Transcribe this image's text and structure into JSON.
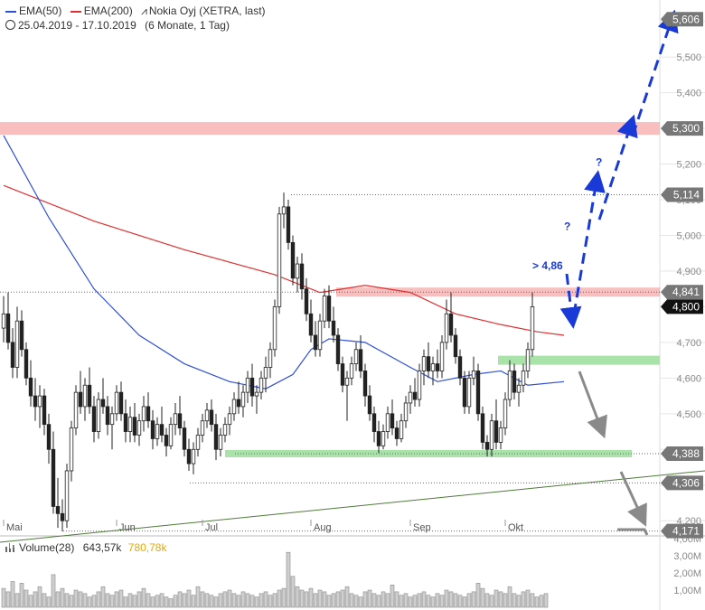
{
  "legend": {
    "ema50": "EMA(50)",
    "ema200": "EMA(200)",
    "instrument": "Nokia Oyj (XETRA, last)",
    "range": "25.04.2019 - 17.10.2019",
    "period": "(6 Monate, 1 Tag)",
    "volume_title": "Volume(28)",
    "volume_value1": "643,57k",
    "volume_value2": "780,78k"
  },
  "colors": {
    "ema50": "#2e4fd8",
    "ema200": "#e03030",
    "arrow_blue": "#1a3ad8",
    "resistance": "#f7a8a8",
    "support": "#a9e3a9",
    "trend": "#4f7a3a",
    "candle": "#222222",
    "projection_grey": "#8a8a8a"
  },
  "chart_data": {
    "type": "candlestick",
    "ylim": [
      4.16,
      5.66
    ],
    "y_ticks": [
      "4,200",
      "4,300",
      "4,400",
      "4,500",
      "4,600",
      "4,700",
      "4,800",
      "4,900",
      "5,000",
      "5,100",
      "5,200",
      "5,300",
      "5,400",
      "5,500",
      "5,600"
    ],
    "x_labels": [
      "Mai",
      "Jun",
      "Jul",
      "Aug",
      "Sep",
      "Okt"
    ],
    "price_tags": [
      {
        "label": "5,606",
        "value": 5.606,
        "style": "grey"
      },
      {
        "label": "5,300",
        "value": 5.3,
        "style": "grey"
      },
      {
        "label": "5,114",
        "value": 5.114,
        "style": "grey"
      },
      {
        "label": "4,841",
        "value": 4.841,
        "style": "grey"
      },
      {
        "label": "4,800",
        "value": 4.8,
        "style": "black"
      },
      {
        "label": "4,388",
        "value": 4.388,
        "style": "grey"
      },
      {
        "label": "4,306",
        "value": 4.306,
        "style": "grey"
      },
      {
        "label": "4,171",
        "value": 4.171,
        "style": "grey"
      }
    ],
    "annotations": [
      {
        "text": "> 4,86",
        "day": 118,
        "value": 4.905
      },
      {
        "text": "?",
        "day": 125,
        "value": 5.015
      },
      {
        "text": "?",
        "day": 132,
        "value": 5.195
      }
    ],
    "ema200": [
      [
        0,
        5.14
      ],
      [
        20,
        5.04
      ],
      [
        40,
        4.96
      ],
      [
        60,
        4.89
      ],
      [
        70,
        4.84
      ],
      [
        80,
        4.86
      ],
      [
        90,
        4.84
      ],
      [
        100,
        4.78
      ],
      [
        110,
        4.75
      ],
      [
        118,
        4.73
      ],
      [
        124,
        4.72
      ]
    ],
    "ema50": [
      [
        0,
        5.28
      ],
      [
        10,
        5.05
      ],
      [
        20,
        4.85
      ],
      [
        30,
        4.72
      ],
      [
        40,
        4.64
      ],
      [
        50,
        4.59
      ],
      [
        58,
        4.57
      ],
      [
        64,
        4.61
      ],
      [
        68,
        4.68
      ],
      [
        72,
        4.71
      ],
      [
        80,
        4.7
      ],
      [
        90,
        4.63
      ],
      [
        96,
        4.59
      ],
      [
        104,
        4.61
      ],
      [
        110,
        4.62
      ],
      [
        116,
        4.58
      ],
      [
        124,
        4.59
      ]
    ],
    "volume_axis": [
      "4,00M",
      "3,00M",
      "2,00M",
      "1,00M"
    ],
    "volume_ylim": [
      0,
      4.0
    ],
    "volume": [
      1.1,
      0.9,
      1.5,
      0.8,
      1.4,
      1.0,
      0.7,
      0.9,
      1.2,
      0.8,
      0.6,
      1.9,
      0.9,
      1.1,
      0.8,
      0.7,
      1.0,
      0.9,
      0.8,
      0.6,
      0.7,
      0.9,
      1.2,
      0.8,
      0.7,
      0.9,
      1.0,
      0.6,
      0.8,
      0.7,
      0.9,
      1.1,
      0.8,
      0.6,
      0.7,
      0.8,
      0.6,
      0.5,
      0.7,
      0.9,
      0.8,
      1.0,
      0.7,
      1.2,
      0.9,
      0.8,
      0.7,
      0.6,
      0.8,
      0.9,
      1.0,
      0.8,
      0.7,
      0.9,
      0.8,
      0.7,
      0.6,
      0.8,
      0.9,
      0.7,
      0.8,
      1.0,
      1.1,
      3.2,
      1.8,
      1.2,
      1.0,
      0.9,
      1.1,
      0.8,
      1.0,
      0.9,
      0.7,
      0.8,
      0.9,
      1.0,
      1.2,
      0.8,
      0.7,
      0.6,
      0.9,
      1.0,
      0.8,
      0.7,
      0.9,
      0.8,
      1.3,
      0.9,
      0.7,
      0.8,
      0.6,
      0.7,
      0.8,
      0.9,
      0.7,
      0.6,
      0.8,
      0.7,
      1.0,
      0.9,
      0.8,
      0.7,
      0.6,
      0.8,
      0.9,
      1.4,
      1.1,
      0.8,
      0.7,
      1.0,
      0.9,
      0.8,
      1.2,
      0.8,
      0.7,
      0.9,
      1.0,
      0.8,
      0.6,
      0.7,
      0.8
    ],
    "candles": [
      [
        4.74,
        4.83,
        4.7,
        4.78
      ],
      [
        4.78,
        4.84,
        4.68,
        4.7
      ],
      [
        4.7,
        4.74,
        4.6,
        4.63
      ],
      [
        4.63,
        4.8,
        4.6,
        4.76
      ],
      [
        4.76,
        4.79,
        4.66,
        4.68
      ],
      [
        4.68,
        4.7,
        4.58,
        4.6
      ],
      [
        4.6,
        4.65,
        4.52,
        4.55
      ],
      [
        4.55,
        4.6,
        4.48,
        4.52
      ],
      [
        4.52,
        4.58,
        4.46,
        4.55
      ],
      [
        4.55,
        4.57,
        4.44,
        4.47
      ],
      [
        4.47,
        4.5,
        4.36,
        4.4
      ],
      [
        4.4,
        4.45,
        4.22,
        4.24
      ],
      [
        4.24,
        4.32,
        4.18,
        4.22
      ],
      [
        4.22,
        4.26,
        4.17,
        4.2
      ],
      [
        4.2,
        4.36,
        4.18,
        4.34
      ],
      [
        4.34,
        4.48,
        4.31,
        4.46
      ],
      [
        4.46,
        4.58,
        4.44,
        4.56
      ],
      [
        4.56,
        4.62,
        4.5,
        4.52
      ],
      [
        4.52,
        4.6,
        4.48,
        4.58
      ],
      [
        4.58,
        4.63,
        4.5,
        4.52
      ],
      [
        4.52,
        4.55,
        4.42,
        4.45
      ],
      [
        4.45,
        4.56,
        4.43,
        4.54
      ],
      [
        4.54,
        4.6,
        4.5,
        4.52
      ],
      [
        4.52,
        4.55,
        4.44,
        4.47
      ],
      [
        4.47,
        4.52,
        4.4,
        4.5
      ],
      [
        4.5,
        4.58,
        4.48,
        4.56
      ],
      [
        4.56,
        4.59,
        4.48,
        4.5
      ],
      [
        4.5,
        4.54,
        4.42,
        4.45
      ],
      [
        4.45,
        4.52,
        4.42,
        4.49
      ],
      [
        4.49,
        4.53,
        4.42,
        4.44
      ],
      [
        4.44,
        4.5,
        4.41,
        4.48
      ],
      [
        4.48,
        4.55,
        4.45,
        4.52
      ],
      [
        4.52,
        4.56,
        4.46,
        4.48
      ],
      [
        4.48,
        4.51,
        4.4,
        4.43
      ],
      [
        4.43,
        4.49,
        4.41,
        4.47
      ],
      [
        4.47,
        4.52,
        4.42,
        4.44
      ],
      [
        4.44,
        4.46,
        4.38,
        4.41
      ],
      [
        4.41,
        4.49,
        4.4,
        4.47
      ],
      [
        4.47,
        4.53,
        4.44,
        4.5
      ],
      [
        4.5,
        4.55,
        4.44,
        4.46
      ],
      [
        4.46,
        4.48,
        4.38,
        4.4
      ],
      [
        4.4,
        4.43,
        4.34,
        4.36
      ],
      [
        4.36,
        4.42,
        4.33,
        4.4
      ],
      [
        4.4,
        4.46,
        4.38,
        4.44
      ],
      [
        4.44,
        4.5,
        4.42,
        4.48
      ],
      [
        4.48,
        4.53,
        4.46,
        4.51
      ],
      [
        4.51,
        4.54,
        4.45,
        4.47
      ],
      [
        4.47,
        4.5,
        4.37,
        4.4
      ],
      [
        4.4,
        4.46,
        4.38,
        4.44
      ],
      [
        4.44,
        4.49,
        4.42,
        4.47
      ],
      [
        4.47,
        4.52,
        4.44,
        4.5
      ],
      [
        4.5,
        4.56,
        4.48,
        4.54
      ],
      [
        4.54,
        4.59,
        4.5,
        4.52
      ],
      [
        4.52,
        4.58,
        4.49,
        4.56
      ],
      [
        4.56,
        4.62,
        4.53,
        4.6
      ],
      [
        4.6,
        4.64,
        4.52,
        4.55
      ],
      [
        4.55,
        4.58,
        4.5,
        4.56
      ],
      [
        4.56,
        4.62,
        4.54,
        4.6
      ],
      [
        4.6,
        4.66,
        4.56,
        4.63
      ],
      [
        4.63,
        4.7,
        4.6,
        4.68
      ],
      [
        4.68,
        4.82,
        4.66,
        4.8
      ],
      [
        4.8,
        5.08,
        4.78,
        5.06
      ],
      [
        5.06,
        5.12,
        5.02,
        5.08
      ],
      [
        5.08,
        5.1,
        4.96,
        4.98
      ],
      [
        4.98,
        5.0,
        4.86,
        4.88
      ],
      [
        4.88,
        4.94,
        4.84,
        4.92
      ],
      [
        4.92,
        4.95,
        4.82,
        4.85
      ],
      [
        4.85,
        4.88,
        4.76,
        4.78
      ],
      [
        4.78,
        4.82,
        4.7,
        4.72
      ],
      [
        4.72,
        4.76,
        4.66,
        4.68
      ],
      [
        4.68,
        4.78,
        4.66,
        4.76
      ],
      [
        4.76,
        4.85,
        4.74,
        4.83
      ],
      [
        4.83,
        4.86,
        4.74,
        4.76
      ],
      [
        4.76,
        4.8,
        4.7,
        4.72
      ],
      [
        4.72,
        4.74,
        4.62,
        4.64
      ],
      [
        4.64,
        4.66,
        4.56,
        4.58
      ],
      [
        4.58,
        4.62,
        4.48,
        4.6
      ],
      [
        4.6,
        4.66,
        4.58,
        4.64
      ],
      [
        4.64,
        4.7,
        4.62,
        4.68
      ],
      [
        4.68,
        4.72,
        4.6,
        4.62
      ],
      [
        4.62,
        4.64,
        4.52,
        4.55
      ],
      [
        4.55,
        4.58,
        4.48,
        4.5
      ],
      [
        4.5,
        4.52,
        4.42,
        4.45
      ],
      [
        4.45,
        4.48,
        4.39,
        4.41
      ],
      [
        4.41,
        4.47,
        4.4,
        4.45
      ],
      [
        4.45,
        4.52,
        4.43,
        4.5
      ],
      [
        4.5,
        4.54,
        4.44,
        4.46
      ],
      [
        4.46,
        4.48,
        4.41,
        4.43
      ],
      [
        4.43,
        4.5,
        4.42,
        4.48
      ],
      [
        4.48,
        4.55,
        4.46,
        4.53
      ],
      [
        4.53,
        4.58,
        4.5,
        4.56
      ],
      [
        4.56,
        4.6,
        4.52,
        4.54
      ],
      [
        4.54,
        4.64,
        4.52,
        4.62
      ],
      [
        4.62,
        4.68,
        4.58,
        4.66
      ],
      [
        4.66,
        4.7,
        4.6,
        4.62
      ],
      [
        4.62,
        4.66,
        4.58,
        4.64
      ],
      [
        4.64,
        4.68,
        4.6,
        4.62
      ],
      [
        4.62,
        4.72,
        4.6,
        4.7
      ],
      [
        4.7,
        4.82,
        4.68,
        4.78
      ],
      [
        4.78,
        4.84,
        4.7,
        4.72
      ],
      [
        4.72,
        4.74,
        4.64,
        4.66
      ],
      [
        4.66,
        4.68,
        4.58,
        4.6
      ],
      [
        4.6,
        4.62,
        4.5,
        4.52
      ],
      [
        4.52,
        4.62,
        4.5,
        4.6
      ],
      [
        4.6,
        4.66,
        4.58,
        4.62
      ],
      [
        4.62,
        4.64,
        4.48,
        4.5
      ],
      [
        4.5,
        4.52,
        4.4,
        4.42
      ],
      [
        4.42,
        4.44,
        4.38,
        4.4
      ],
      [
        4.4,
        4.5,
        4.38,
        4.48
      ],
      [
        4.48,
        4.54,
        4.4,
        4.42
      ],
      [
        4.42,
        4.48,
        4.4,
        4.46
      ],
      [
        4.46,
        4.56,
        4.44,
        4.54
      ],
      [
        4.54,
        4.65,
        4.52,
        4.62
      ],
      [
        4.62,
        4.64,
        4.54,
        4.56
      ],
      [
        4.56,
        4.6,
        4.52,
        4.58
      ],
      [
        4.58,
        4.64,
        4.56,
        4.62
      ],
      [
        4.62,
        4.7,
        4.6,
        4.68
      ],
      [
        4.68,
        4.84,
        4.66,
        4.8
      ]
    ]
  }
}
